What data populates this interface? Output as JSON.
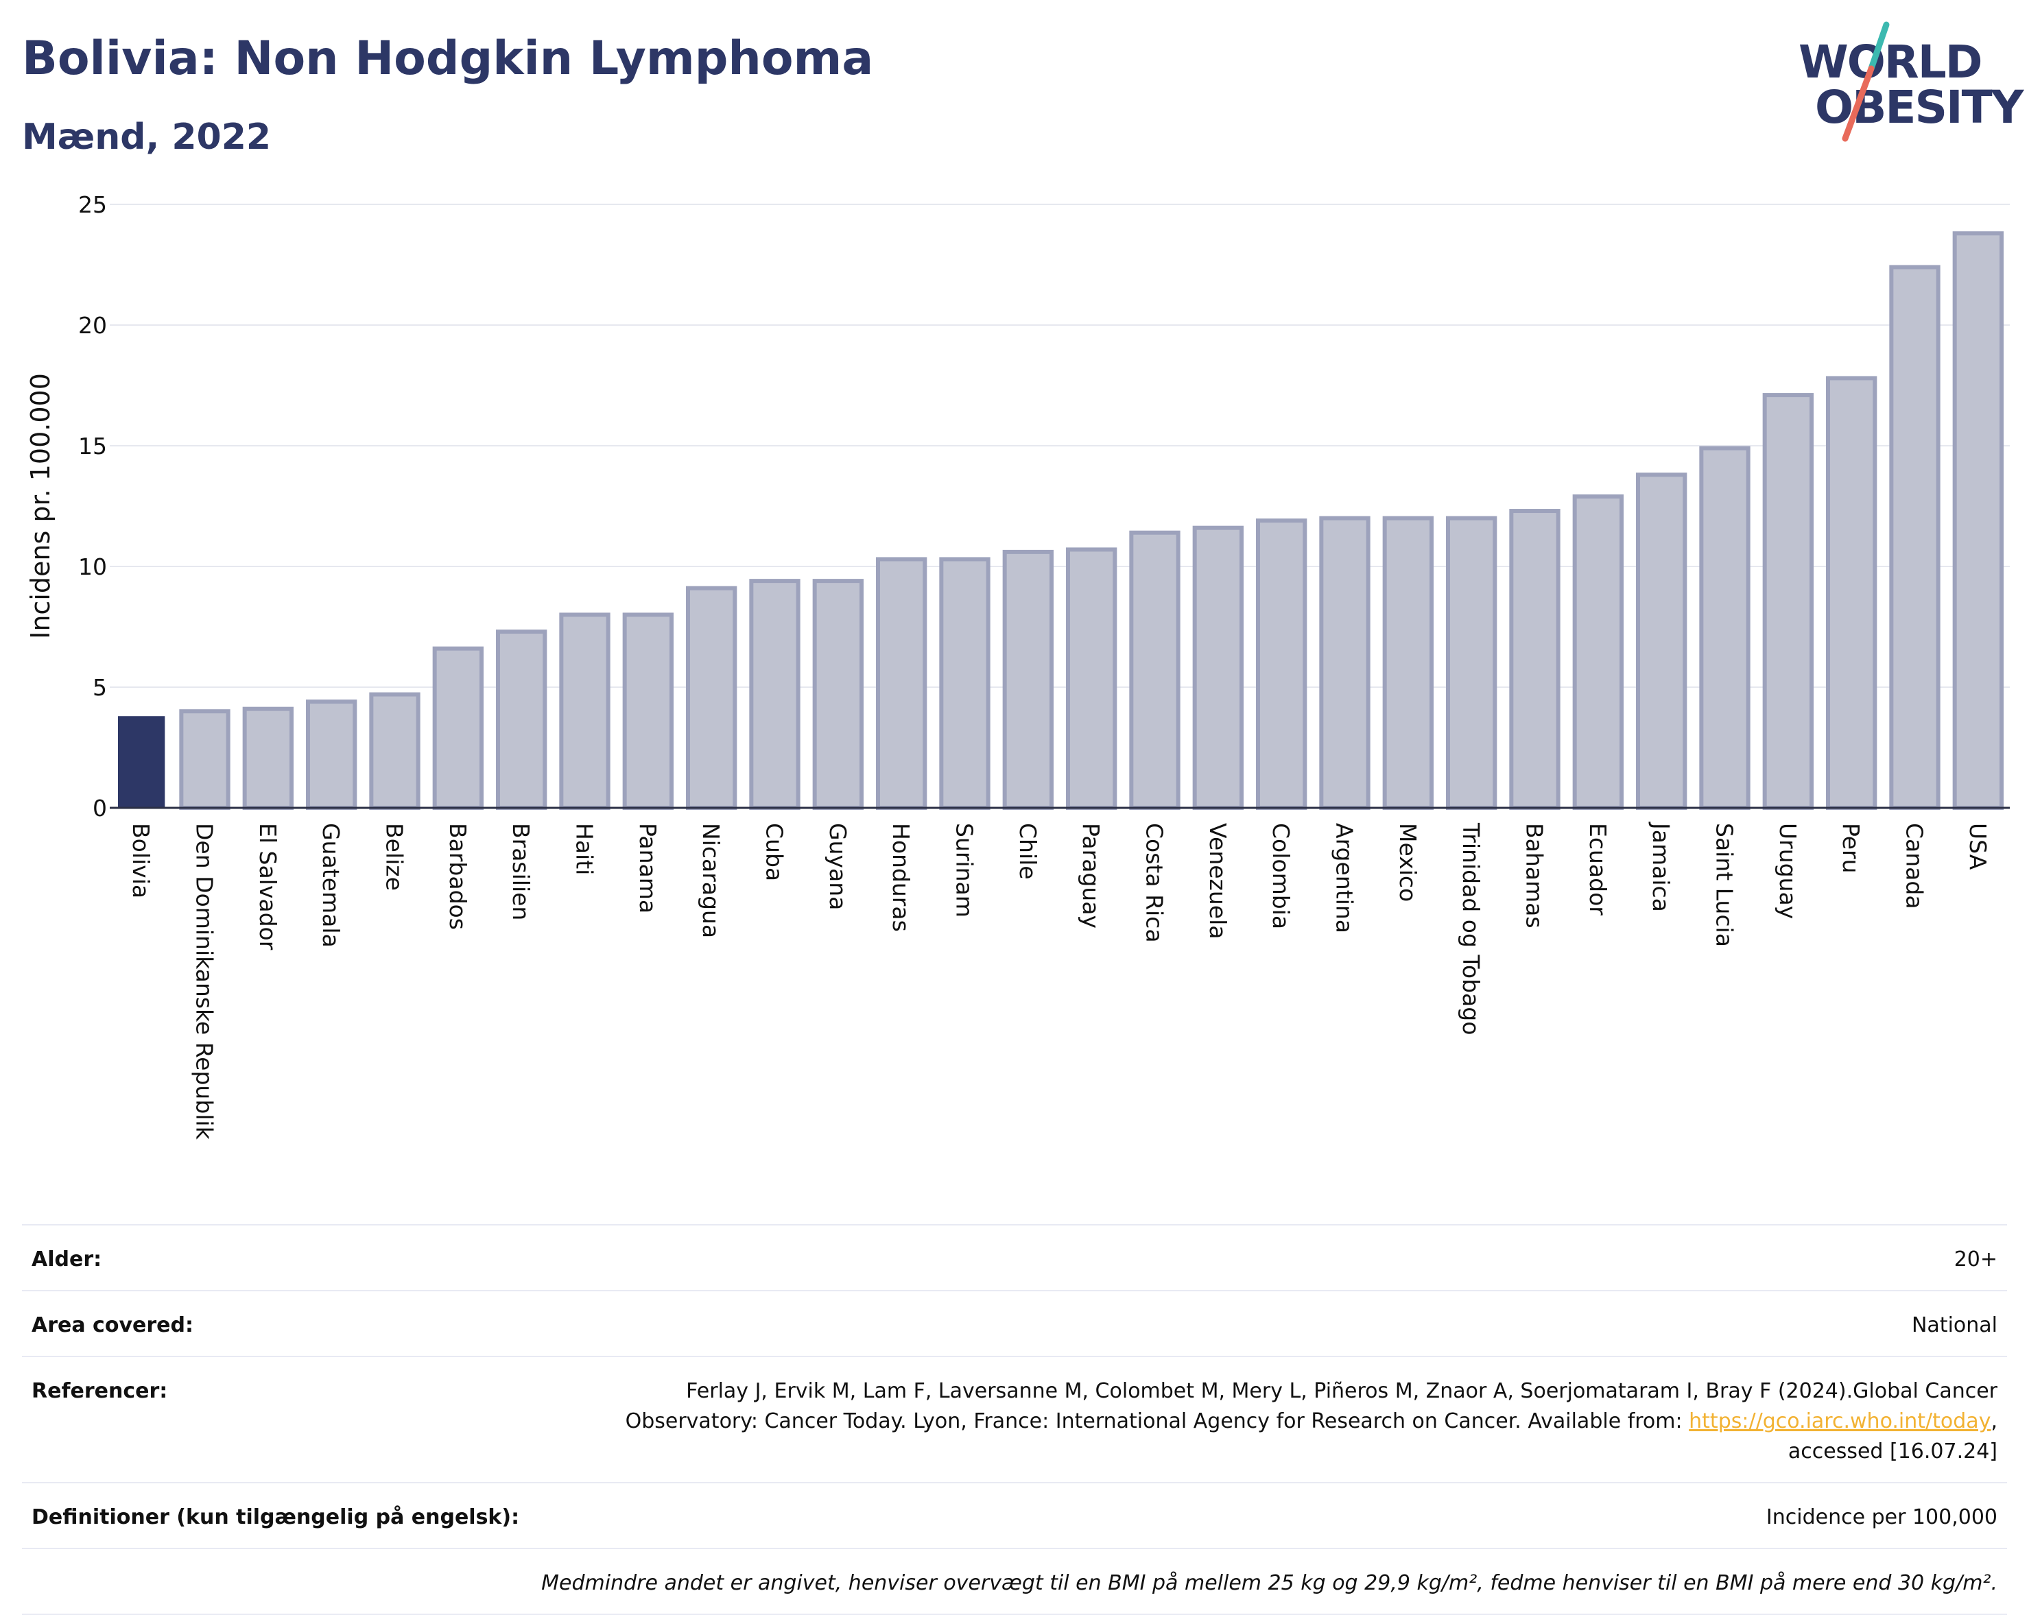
{
  "header": {
    "title": "Bolivia: Non Hodgkin Lymphoma",
    "subtitle": "Mænd, 2022"
  },
  "logo": {
    "line1": "WORLD",
    "line2": "OBESITY",
    "colors": {
      "text": "#2d3766",
      "slash_top": "#3cb9b0",
      "slash_bottom": "#e86a5a"
    }
  },
  "chart_data": {
    "type": "bar",
    "ylabel": "Incidens pr. 100.000",
    "ylim": [
      0,
      25
    ],
    "yticks": [
      0,
      5,
      10,
      15,
      20,
      25
    ],
    "grid": true,
    "categories": [
      "Bolivia",
      "Den Dominikanske Republik",
      "El Salvador",
      "Guatemala",
      "Belize",
      "Barbados",
      "Brasilien",
      "Haiti",
      "Panama",
      "Nicaragua",
      "Cuba",
      "Guyana",
      "Honduras",
      "Surinam",
      "Chile",
      "Paraguay",
      "Costa Rica",
      "Venezuela",
      "Colombia",
      "Argentina",
      "Mexico",
      "Trinidad og Tobago",
      "Bahamas",
      "Ecuador",
      "Jamaica",
      "Saint Lucia",
      "Uruguay",
      "Peru",
      "Canada",
      "USA"
    ],
    "values": [
      3.8,
      4.0,
      4.1,
      4.4,
      4.7,
      6.6,
      7.3,
      8.0,
      8.0,
      9.1,
      9.4,
      9.4,
      10.3,
      10.3,
      10.6,
      10.7,
      11.4,
      11.6,
      11.9,
      12.0,
      12.0,
      12.0,
      12.3,
      12.9,
      13.8,
      14.9,
      17.1,
      17.8,
      22.4,
      23.8
    ],
    "highlight": "Bolivia",
    "colors": {
      "highlight": "#2d3766",
      "bar_fill": "#bfc2d0",
      "bar_stroke": "#9da2bc"
    }
  },
  "info": {
    "rows": [
      {
        "label": "Alder:",
        "value": "20+"
      },
      {
        "label": "Area covered:",
        "value": "National"
      },
      {
        "label": "Referencer:",
        "value_pre": "Ferlay J, Ervik M, Lam F, Laversanne M, Colombet M, Mery L, Piñeros M, Znaor A, Soerjomataram I, Bray F (2024).Global Cancer Observatory: Cancer Today. Lyon, France: International Agency for Research on Cancer. Available from: ",
        "link": "https://gco.iarc.who.int/today",
        "value_post": ", accessed [16.07.24]"
      },
      {
        "label": "Definitioner (kun tilgængelig på engelsk):",
        "value": "Incidence per 100,000"
      }
    ],
    "note": "Medmindre andet er angivet, henviser overvægt til en BMI på mellem 25 kg og 29,9 kg/m², fedme henviser til en BMI på mere end 30 kg/m²."
  }
}
